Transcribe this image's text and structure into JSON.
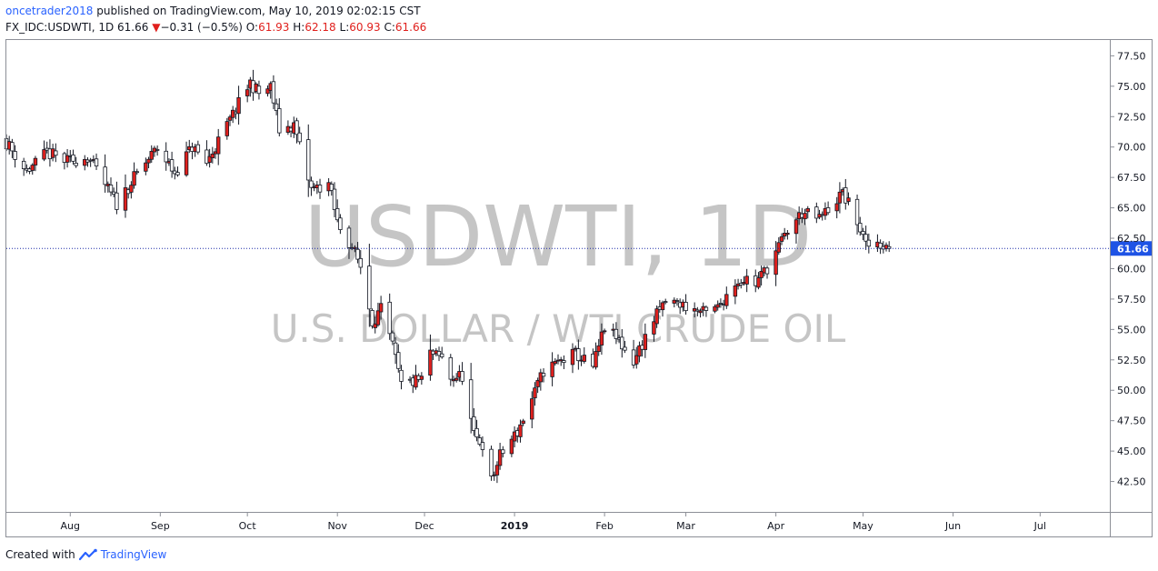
{
  "header": {
    "user": "oncetrader2018",
    "published": "published on TradingView.com, May 10, 2019 02:02:15 CST",
    "symbol": "FX_IDC:USDWTI, 1D",
    "last": "61.66",
    "change_arrow": "▼",
    "change": "−0.31 (−0.5%)",
    "open_label": "O:",
    "open": "61.93",
    "high_label": "H:",
    "high": "62.18",
    "low_label": "L:",
    "low": "60.93",
    "close_label": "C:",
    "close": "61.66"
  },
  "watermark": {
    "title": "USDWTI, 1D",
    "subtitle": "U.S. DOLLAR / WTI CRUDE OIL"
  },
  "footer": {
    "created_with": "Created with",
    "brand": "TradingView"
  },
  "colors": {
    "up": "#e0201d",
    "down": "#ffffff",
    "wick": "#131722",
    "price_line": "#1e2ba8",
    "price_label_bg": "#1e53e5",
    "watermark": "#c5c5c5"
  },
  "chart_data": {
    "type": "candlestick",
    "y_ticks": [
      "77.50",
      "75.00",
      "72.50",
      "70.00",
      "67.50",
      "65.00",
      "62.50",
      "60.00",
      "57.50",
      "55.00",
      "52.50",
      "50.00",
      "47.50",
      "45.00",
      "42.50"
    ],
    "ylim": [
      40.0,
      78.8
    ],
    "x_ticks": [
      {
        "label": "Aug",
        "date": "2018-08-01"
      },
      {
        "label": "Sep",
        "date": "2018-09-01"
      },
      {
        "label": "Oct",
        "date": "2018-10-01"
      },
      {
        "label": "Nov",
        "date": "2018-11-01"
      },
      {
        "label": "Dec",
        "date": "2018-12-01"
      },
      {
        "label": "2019",
        "date": "2019-01-01",
        "bold": true
      },
      {
        "label": "Feb",
        "date": "2019-02-01"
      },
      {
        "label": "Mar",
        "date": "2019-03-01"
      },
      {
        "label": "Apr",
        "date": "2019-04-01"
      },
      {
        "label": "May",
        "date": "2019-05-01"
      },
      {
        "label": "Jun",
        "date": "2019-06-01"
      },
      {
        "label": "Jul",
        "date": "2019-07-01"
      }
    ],
    "xlim": [
      "2018-07-10",
      "2019-07-25"
    ],
    "last_price": 61.66,
    "last_price_label": "61.66",
    "anchors": [
      [
        "2018-07-10",
        70.4
      ],
      [
        "2018-07-17",
        68.0
      ],
      [
        "2018-07-24",
        69.5
      ],
      [
        "2018-07-31",
        68.8
      ],
      [
        "2018-08-07",
        69.2
      ],
      [
        "2018-08-14",
        66.5
      ],
      [
        "2018-08-17",
        65.3
      ],
      [
        "2018-08-24",
        67.8
      ],
      [
        "2018-08-31",
        69.9
      ],
      [
        "2018-09-06",
        67.9
      ],
      [
        "2018-09-12",
        70.0
      ],
      [
        "2018-09-17",
        68.7
      ],
      [
        "2018-09-25",
        72.2
      ],
      [
        "2018-10-02",
        75.3
      ],
      [
        "2018-10-05",
        74.4
      ],
      [
        "2018-10-09",
        74.9
      ],
      [
        "2018-10-12",
        71.4
      ],
      [
        "2018-10-17",
        71.8
      ],
      [
        "2018-10-23",
        66.5
      ],
      [
        "2018-10-29",
        67.0
      ],
      [
        "2018-11-01",
        63.8
      ],
      [
        "2018-11-06",
        61.8
      ],
      [
        "2018-11-09",
        60.2
      ],
      [
        "2018-11-13",
        55.7
      ],
      [
        "2018-11-16",
        56.6
      ],
      [
        "2018-11-20",
        53.6
      ],
      [
        "2018-11-23",
        50.4
      ],
      [
        "2018-11-30",
        50.9
      ],
      [
        "2018-12-03",
        53.0
      ],
      [
        "2018-12-07",
        52.6
      ],
      [
        "2018-12-10",
        51.0
      ],
      [
        "2018-12-14",
        51.2
      ],
      [
        "2018-12-18",
        46.2
      ],
      [
        "2018-12-21",
        45.6
      ],
      [
        "2018-12-24",
        42.5
      ],
      [
        "2018-12-27",
        44.6
      ],
      [
        "2019-01-02",
        46.6
      ],
      [
        "2019-01-08",
        49.8
      ],
      [
        "2019-01-11",
        51.6
      ],
      [
        "2019-01-16",
        52.3
      ],
      [
        "2019-01-22",
        53.0
      ],
      [
        "2019-01-28",
        51.9
      ],
      [
        "2019-02-01",
        55.2
      ],
      [
        "2019-02-06",
        54.0
      ],
      [
        "2019-02-11",
        52.4
      ],
      [
        "2019-02-18",
        55.8
      ],
      [
        "2019-02-22",
        57.3
      ],
      [
        "2019-02-27",
        57.1
      ],
      [
        "2019-03-04",
        56.6
      ],
      [
        "2019-03-08",
        56.3
      ],
      [
        "2019-03-12",
        56.8
      ],
      [
        "2019-03-18",
        58.9
      ],
      [
        "2019-03-22",
        59.2
      ],
      [
        "2019-03-25",
        58.8
      ],
      [
        "2019-03-29",
        60.1
      ],
      [
        "2019-04-05",
        63.1
      ],
      [
        "2019-04-10",
        64.6
      ],
      [
        "2019-04-16",
        64.1
      ],
      [
        "2019-04-22",
        65.7
      ],
      [
        "2019-04-24",
        66.2
      ],
      [
        "2019-04-29",
        63.9
      ],
      [
        "2019-05-02",
        61.8
      ],
      [
        "2019-05-06",
        62.2
      ],
      [
        "2019-05-10",
        61.66
      ]
    ]
  }
}
